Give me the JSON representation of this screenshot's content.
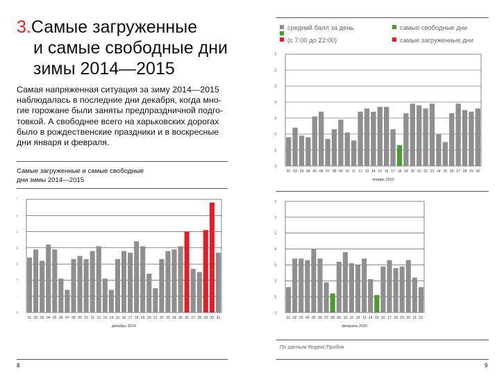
{
  "heading": {
    "number": "3.",
    "lines": [
      "Самые загруженные",
      "и самые свободные дни",
      "зимы 2014—2015"
    ]
  },
  "intro": {
    "lines": [
      "Самая напряженная ситуация за зиму 2014—2015",
      "наблюдалась в последние дни декабря, когда мно-",
      "гие горожане были заняты предпраздничной подго-",
      "товкой. А свободнее всего на харьковских дорогах",
      "было в рождественские праздники и в воскресные",
      "дни января и февраля."
    ]
  },
  "left_chart_caption": [
    "Самые загруженные и самые свободные",
    "дни зимы 2014—2015"
  ],
  "legend": {
    "average_label": "средний балл за день",
    "free_label": "самые свободные дни",
    "busy_label": "самые загруженные дни",
    "hours_label": "(с 7:00 до 22:00)"
  },
  "colors": {
    "gray": "#8f8f8f",
    "green": "#4b9a32",
    "red": "#e31e24"
  },
  "source": "По данным Яндекс.Пробок",
  "page_numbers": {
    "left": "8",
    "right": "9"
  },
  "chart_data": [
    {
      "type": "bar",
      "id": "december",
      "xlabel": "декабрь 2014",
      "ylim": [
        0,
        7
      ],
      "yticks": [
        0,
        1,
        2,
        3,
        4,
        5,
        6,
        7
      ],
      "grid": true,
      "categories": [
        "01",
        "02",
        "03",
        "04",
        "05",
        "06",
        "07",
        "08",
        "09",
        "10",
        "11",
        "12",
        "13",
        "14",
        "15",
        "16",
        "17",
        "18",
        "19",
        "20",
        "21",
        "22",
        "23",
        "24",
        "25",
        "26",
        "27",
        "28",
        "29",
        "30",
        "31"
      ],
      "values": [
        3.4,
        3.9,
        3.2,
        4.2,
        3.9,
        2.1,
        1.4,
        3.3,
        3.5,
        3.3,
        3.8,
        4.1,
        2.1,
        1.4,
        3.3,
        3.8,
        3.7,
        4.4,
        4.1,
        2.4,
        1.5,
        3.3,
        3.8,
        3.9,
        4.1,
        5.0,
        2.7,
        2.5,
        5.1,
        6.8,
        3.7
      ],
      "highlight": [
        "gray",
        "gray",
        "gray",
        "gray",
        "gray",
        "gray",
        "gray",
        "gray",
        "gray",
        "gray",
        "gray",
        "gray",
        "gray",
        "gray",
        "gray",
        "gray",
        "gray",
        "gray",
        "gray",
        "gray",
        "gray",
        "gray",
        "gray",
        "gray",
        "gray",
        "red",
        "gray",
        "gray",
        "red",
        "red",
        "gray"
      ]
    },
    {
      "type": "bar",
      "id": "january",
      "xlabel": "январь 2015",
      "ylim": [
        0,
        7
      ],
      "yticks": [
        0,
        1,
        2,
        3,
        4,
        5,
        6,
        7
      ],
      "grid": true,
      "categories": [
        "01",
        "02",
        "03",
        "04",
        "05",
        "06",
        "07",
        "08",
        "09",
        "10",
        "11",
        "12",
        "13",
        "14",
        "15",
        "16",
        "17",
        "18",
        "19",
        "20",
        "21",
        "22",
        "23",
        "24",
        "25",
        "26",
        "27",
        "28",
        "29",
        "30"
      ],
      "values": [
        1.8,
        2.4,
        1.9,
        1.8,
        3.1,
        3.4,
        1.7,
        2.3,
        2.9,
        2.1,
        1.6,
        3.4,
        3.6,
        3.4,
        3.7,
        3.7,
        2.3,
        1.3,
        3.3,
        3.9,
        3.8,
        3.6,
        3.9,
        2.0,
        1.5,
        3.3,
        3.9,
        3.5,
        3.4,
        3.6
      ],
      "highlight": [
        "gray",
        "gray",
        "gray",
        "gray",
        "gray",
        "gray",
        "gray",
        "gray",
        "gray",
        "gray",
        "gray",
        "gray",
        "gray",
        "gray",
        "gray",
        "gray",
        "gray",
        "green",
        "gray",
        "gray",
        "gray",
        "gray",
        "gray",
        "gray",
        "gray",
        "gray",
        "gray",
        "gray",
        "gray",
        "gray"
      ]
    },
    {
      "type": "bar",
      "id": "february",
      "xlabel": "февраль 2015",
      "ylim": [
        0,
        7
      ],
      "yticks": [
        0,
        1,
        2,
        3,
        4,
        5,
        6,
        7
      ],
      "grid": true,
      "categories": [
        "01",
        "02",
        "03",
        "04",
        "05",
        "06",
        "07",
        "08",
        "09",
        "10",
        "11",
        "12",
        "13",
        "14",
        "15",
        "16",
        "17",
        "18",
        "19",
        "20",
        "21",
        "22"
      ],
      "values": [
        1.6,
        3.4,
        3.4,
        3.3,
        4.0,
        3.4,
        1.9,
        1.2,
        3.2,
        3.8,
        3.1,
        3.0,
        3.4,
        2.1,
        1.1,
        2.9,
        3.3,
        2.8,
        2.9,
        3.3,
        2.2,
        1.6
      ],
      "highlight": [
        "gray",
        "gray",
        "gray",
        "gray",
        "gray",
        "gray",
        "gray",
        "green",
        "gray",
        "gray",
        "gray",
        "gray",
        "gray",
        "gray",
        "green",
        "gray",
        "gray",
        "gray",
        "gray",
        "gray",
        "gray",
        "gray"
      ]
    }
  ]
}
